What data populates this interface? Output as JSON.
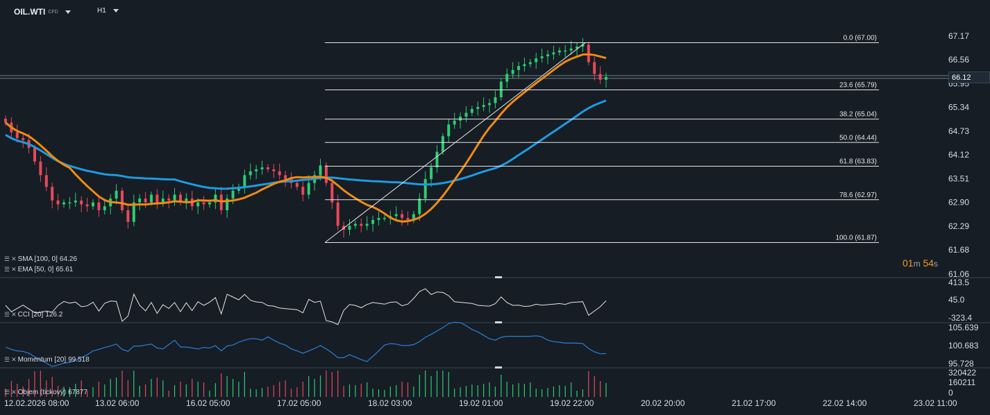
{
  "header": {
    "symbol": "OIL.WTI",
    "symbol_sub": "CFD",
    "timeframe": "H1"
  },
  "price_axis": {
    "labels": [
      "67.17",
      "66.56",
      "65.95",
      "65.34",
      "64.73",
      "64.12",
      "63.51",
      "62.90",
      "62.29",
      "61.68",
      "61.06"
    ],
    "min": 61.06,
    "max": 67.17
  },
  "current_price": "66.12",
  "fib_levels": [
    {
      "label": "0.0 (67.00)",
      "price": 67.0
    },
    {
      "label": "23.6 (65.79)",
      "price": 65.79
    },
    {
      "label": "38.2 (65.04)",
      "price": 65.04
    },
    {
      "label": "50.0 (64.44)",
      "price": 64.44
    },
    {
      "label": "61.8 (63.83)",
      "price": 63.83
    },
    {
      "label": "78.6 (62.97)",
      "price": 62.97
    },
    {
      "label": "100.0 (61.87)",
      "price": 61.87
    }
  ],
  "legend": {
    "sma": {
      "label": "SMA [100,  0]",
      "value": "64.26",
      "color": "#1e9be0"
    },
    "ema": {
      "label": "EMA [50,  0]",
      "value": "65.61",
      "color": "#f08a12"
    }
  },
  "timer": {
    "minutes": "01",
    "m": "m",
    "seconds": "54",
    "s": "s"
  },
  "cci": {
    "label": "CCI  [20]",
    "value": "126.2",
    "axis": [
      "413.5",
      "45.0",
      "-323.4"
    ],
    "color": "#e6e6e6"
  },
  "momentum": {
    "label": "Momentum  [20]",
    "value": "99.518",
    "axis": [
      "105.639",
      "100.683",
      "95.728"
    ],
    "color": "#2d7fd6"
  },
  "volume": {
    "label": "Objem  (tickový)",
    "value": "67877",
    "axis": [
      "320422",
      "160211",
      "0"
    ]
  },
  "time_axis": [
    "12.02.2026  08:00",
    "13.02  06:00",
    "16.02  05:00",
    "17.02  05:00",
    "18.02  03:00",
    "19.02  01:00",
    "19.02  22:00",
    "20.02  20:00",
    "21.02  17:00",
    "22.02  14:00",
    "23.02  11:00"
  ],
  "chart_data": {
    "type": "candlestick",
    "title": "OIL.WTI",
    "timeframe": "H1",
    "ylim": [
      61.06,
      67.17
    ],
    "close_sketch": [
      64.95,
      64.7,
      64.55,
      64.5,
      64.3,
      63.95,
      63.6,
      63.3,
      62.95,
      62.85,
      62.9,
      62.9,
      62.95,
      62.85,
      62.8,
      62.9,
      62.7,
      62.8,
      63.0,
      63.2,
      62.7,
      62.4,
      62.9,
      63.0,
      62.9,
      63.1,
      62.9,
      63.0,
      62.95,
      63.1,
      62.9,
      63.0,
      62.8,
      62.9,
      62.85,
      62.9,
      63.1,
      62.7,
      63.0,
      63.2,
      63.3,
      63.6,
      63.7,
      63.75,
      63.8,
      63.75,
      63.7,
      63.6,
      63.5,
      63.4,
      63.3,
      63.1,
      63.4,
      63.6,
      63.85,
      63.4,
      62.9,
      62.3,
      62.2,
      62.3,
      62.35,
      62.3,
      62.35,
      62.45,
      62.5,
      62.5,
      62.55,
      62.6,
      62.5,
      62.45,
      62.6,
      63.0,
      63.5,
      63.8,
      64.2,
      64.6,
      64.9,
      65.0,
      65.1,
      65.2,
      65.3,
      65.35,
      65.4,
      65.45,
      65.6,
      66.0,
      66.2,
      66.3,
      66.4,
      66.45,
      66.5,
      66.6,
      66.65,
      66.7,
      66.75,
      66.8,
      66.8,
      66.85,
      66.9,
      66.95,
      66.5,
      66.2,
      66.05,
      66.12
    ],
    "sma_100_last": 64.26,
    "ema_50_last": 65.61,
    "fibonacci": {
      "high": 67.0,
      "low": 61.87,
      "levels": [
        0.0,
        23.6,
        38.2,
        50.0,
        61.8,
        78.6,
        100.0
      ]
    }
  }
}
